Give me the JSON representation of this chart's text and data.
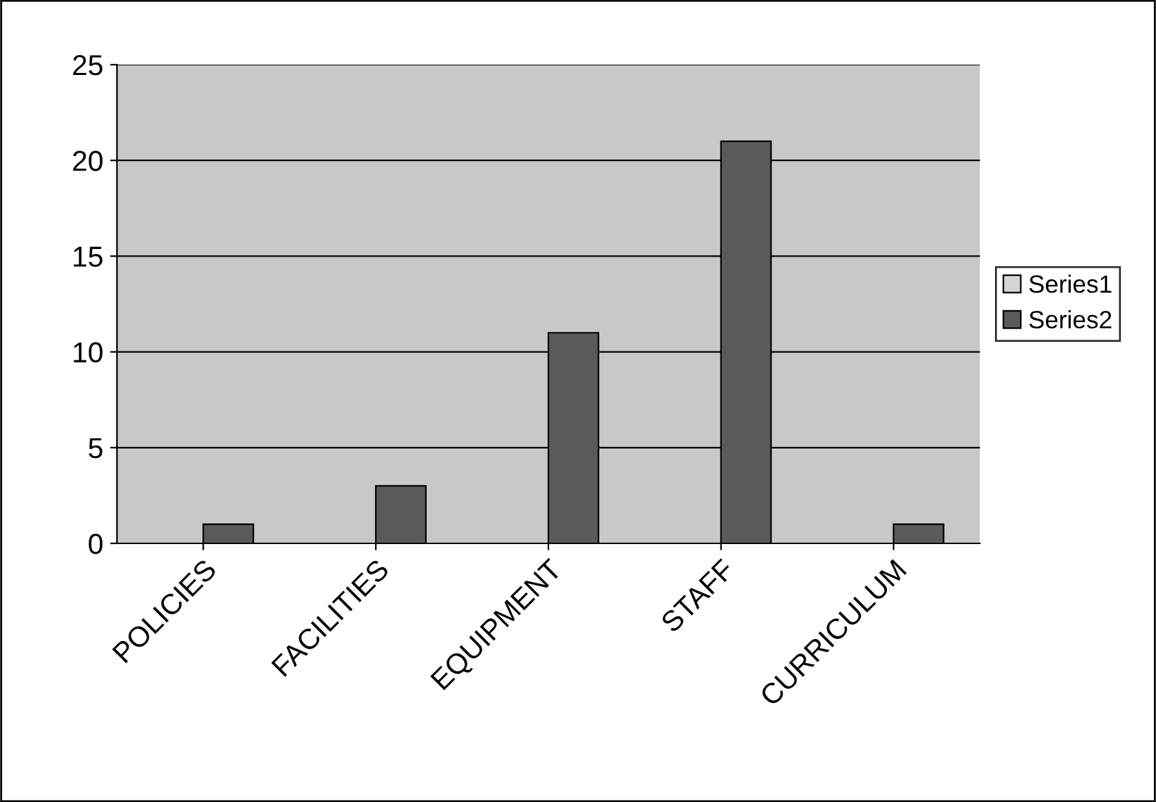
{
  "chart_data": {
    "type": "bar",
    "categories": [
      "POLICIES",
      "FACILITIES",
      "EQUIPMENT",
      "STAFF",
      "CURRICULUM"
    ],
    "series": [
      {
        "name": "Series1",
        "color": "#d4d4d4",
        "values": [
          null,
          null,
          null,
          null,
          null
        ]
      },
      {
        "name": "Series2",
        "color": "#5a5a5a",
        "values": [
          1,
          3,
          11,
          21,
          1
        ]
      }
    ],
    "ylim": [
      0,
      25
    ],
    "yticks": [
      0,
      5,
      10,
      15,
      20,
      25
    ],
    "grid": "y",
    "legend": "right"
  }
}
